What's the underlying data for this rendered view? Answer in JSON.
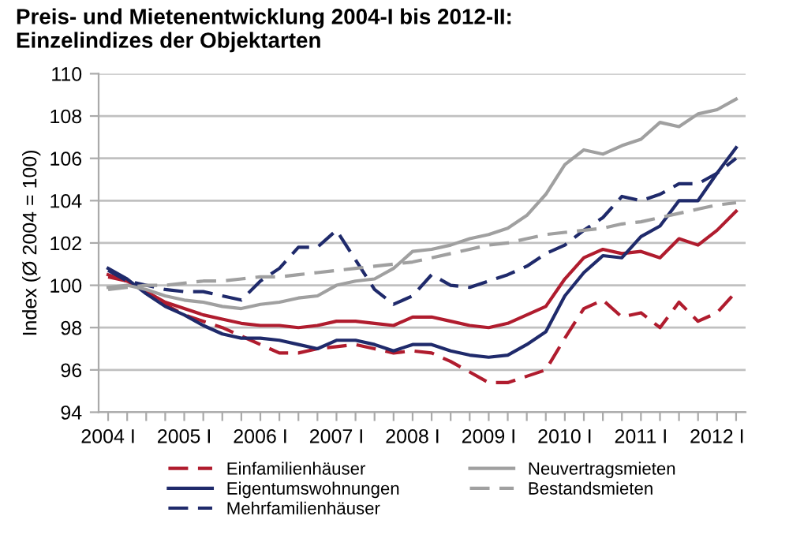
{
  "chart_data": {
    "type": "line",
    "title": "Preis- und Mietenentwicklung 2004-I bis 2012-II:\nEinzelindizes der Objektarten",
    "ylabel": "Index (Ø 2004 = 100)",
    "categories": [
      "2004 I",
      null,
      null,
      null,
      "2005 I",
      null,
      null,
      null,
      "2006 I",
      null,
      null,
      null,
      "2007 I",
      null,
      null,
      null,
      "2008 I",
      null,
      null,
      null,
      "2009 I",
      null,
      null,
      null,
      "2010 I",
      null,
      null,
      null,
      "2011 I",
      null,
      null,
      null,
      "2012 I",
      null
    ],
    "ylim": [
      94,
      110
    ],
    "yticks": [
      94,
      96,
      98,
      100,
      102,
      104,
      106,
      108,
      110
    ],
    "grid": "y",
    "legend": "bottom",
    "marker": "none",
    "series": [
      {
        "color": "#b01c2e",
        "line_style": "solid",
        "values": [
          100.5,
          100.2,
          99.7,
          99.2,
          98.9,
          98.6,
          98.4,
          98.2,
          98.1,
          98.1,
          98.0,
          98.1,
          98.3,
          98.3,
          98.2,
          98.1,
          98.5,
          98.5,
          98.3,
          98.1,
          98.0,
          98.2,
          98.6,
          99.0,
          100.3,
          101.3,
          101.7,
          101.5,
          101.6,
          101.3,
          102.2,
          101.9,
          102.6,
          103.5
        ]
      },
      {
        "name": "Einfamilienhäuser",
        "color": "#b01c2e",
        "line_style": "dashed",
        "values": [
          100.4,
          100.2,
          99.7,
          99.1,
          98.6,
          98.3,
          98.0,
          97.6,
          97.2,
          96.8,
          96.8,
          97.0,
          97.1,
          97.2,
          97.0,
          96.8,
          96.9,
          96.8,
          96.4,
          95.9,
          95.4,
          95.4,
          95.7,
          96.0,
          97.5,
          98.9,
          99.3,
          98.5,
          98.7,
          98.0,
          99.2,
          98.3,
          98.7,
          99.7
        ]
      },
      {
        "name": "Eigentumswohnungen",
        "color": "#1f2a6b",
        "line_style": "solid",
        "values": [
          100.8,
          100.3,
          99.6,
          99.0,
          98.6,
          98.1,
          97.7,
          97.5,
          97.5,
          97.4,
          97.2,
          97.0,
          97.4,
          97.4,
          97.2,
          96.9,
          97.2,
          97.2,
          96.9,
          96.7,
          96.6,
          96.7,
          97.2,
          97.8,
          99.5,
          100.6,
          101.4,
          101.3,
          102.3,
          102.8,
          104.0,
          104.0,
          105.3,
          106.5
        ]
      },
      {
        "name": "Mehrfamilienhäuser",
        "color": "#1f2a6b",
        "line_style": "dashed",
        "values": [
          100.7,
          100.2,
          100.0,
          99.8,
          99.7,
          99.7,
          99.5,
          99.3,
          100.2,
          100.8,
          101.8,
          101.8,
          102.6,
          101.2,
          99.8,
          99.1,
          99.5,
          100.5,
          100.0,
          99.9,
          100.2,
          100.5,
          100.9,
          101.5,
          101.9,
          102.6,
          103.2,
          104.2,
          104.0,
          104.3,
          104.8,
          104.8,
          105.3,
          106.0
        ]
      },
      {
        "name": "Neuvertragsmieten",
        "color": "#a0a0a0",
        "line_style": "solid",
        "values": [
          99.9,
          100.0,
          99.8,
          99.5,
          99.3,
          99.2,
          99.0,
          98.9,
          99.1,
          99.2,
          99.4,
          99.5,
          100.0,
          100.2,
          100.3,
          100.8,
          101.6,
          101.7,
          101.9,
          102.2,
          102.4,
          102.7,
          103.3,
          104.3,
          105.7,
          106.4,
          106.2,
          106.6,
          106.9,
          107.7,
          107.5,
          108.1,
          108.3,
          108.8
        ]
      },
      {
        "name": "Bestandsmieten",
        "color": "#a0a0a0",
        "line_style": "dashed",
        "values": [
          99.8,
          99.9,
          100.0,
          100.0,
          100.1,
          100.2,
          100.2,
          100.3,
          100.4,
          100.4,
          100.5,
          100.6,
          100.7,
          100.8,
          100.9,
          101.0,
          101.1,
          101.3,
          101.5,
          101.7,
          101.9,
          102.0,
          102.2,
          102.4,
          102.5,
          102.6,
          102.7,
          102.9,
          103.0,
          103.2,
          103.4,
          103.6,
          103.8,
          103.9
        ]
      }
    ]
  }
}
